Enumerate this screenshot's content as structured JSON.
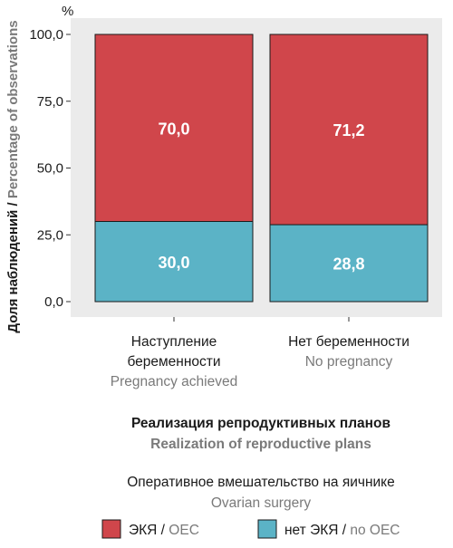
{
  "chart_data": {
    "type": "bar",
    "stacked": true,
    "unit": "%",
    "categories": [
      {
        "ru": "Наступление беременности",
        "ru_lines": [
          "Наступление",
          "беременности"
        ],
        "en": "Pregnancy achieved"
      },
      {
        "ru": "Нет беременности",
        "ru_lines": [
          "Нет беременности"
        ],
        "en": "No pregnancy"
      }
    ],
    "series": [
      {
        "name_ru": "нет ЭКЯ",
        "name_en": "no OEC",
        "values": [
          30.0,
          28.8
        ],
        "labels": [
          "30,0",
          "28,8"
        ],
        "color": "#5bb3c6"
      },
      {
        "name_ru": "ЭКЯ",
        "name_en": "OEC",
        "values": [
          70.0,
          71.2
        ],
        "labels": [
          "70,0",
          "71,2"
        ],
        "color": "#d0464b"
      }
    ],
    "ylim": [
      0,
      100
    ],
    "yticks": [
      0,
      25,
      50,
      75,
      100
    ],
    "ytick_labels": [
      "0,0",
      "25,0",
      "50,0",
      "75,0",
      "100,0"
    ],
    "ylabel": {
      "ru": "Доля наблюдений",
      "en": "Percentage of observations"
    },
    "xlabel": {
      "ru": "Реализация репродуктивных планов",
      "en": "Realization of reproductive plans"
    },
    "legend": {
      "title_ru": "Оперативное вмешательство на яичнике",
      "title_en": "Ovarian surgery",
      "separator": " / ",
      "entries": [
        {
          "ru": "ЭКЯ",
          "en": "OEC",
          "color": "#d0464b"
        },
        {
          "ru": "нет ЭКЯ",
          "en": "no OEC",
          "color": "#5bb3c6"
        }
      ],
      "position": "bottom"
    },
    "grid": false,
    "panel_background": "#ebebeb"
  }
}
